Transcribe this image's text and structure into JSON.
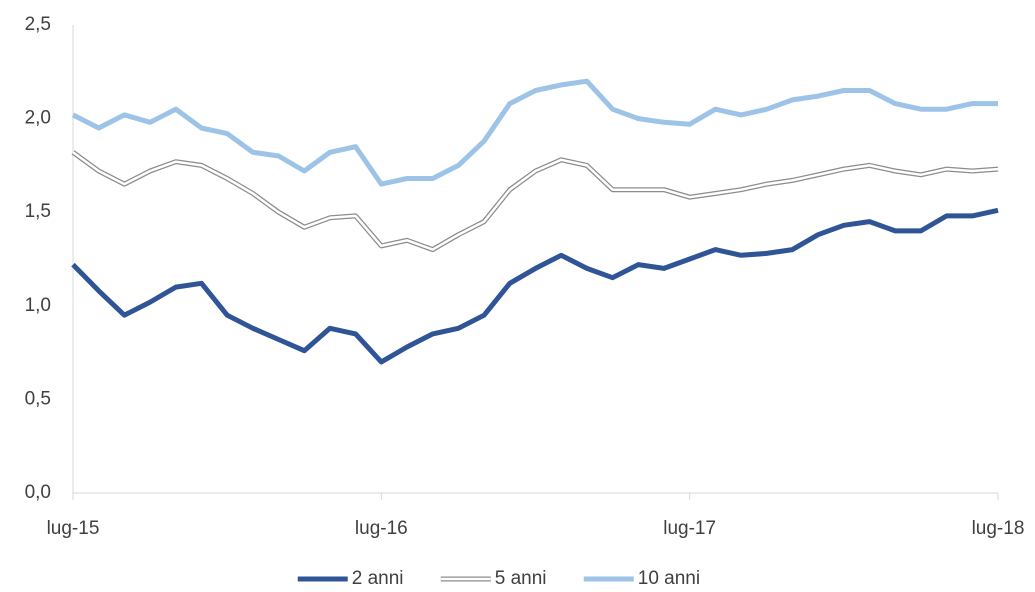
{
  "chart_data": {
    "type": "line",
    "x": [
      "2015-07",
      "2015-08",
      "2015-09",
      "2015-10",
      "2015-11",
      "2015-12",
      "2016-01",
      "2016-02",
      "2016-03",
      "2016-04",
      "2016-05",
      "2016-06",
      "2016-07",
      "2016-08",
      "2016-09",
      "2016-10",
      "2016-11",
      "2016-12",
      "2017-01",
      "2017-02",
      "2017-03",
      "2017-04",
      "2017-05",
      "2017-06",
      "2017-07",
      "2017-08",
      "2017-09",
      "2017-10",
      "2017-11",
      "2017-12",
      "2018-01",
      "2018-02",
      "2018-03",
      "2018-04",
      "2018-05",
      "2018-06",
      "2018-07"
    ],
    "series": [
      {
        "name": "2 anni",
        "color": "#2f5597",
        "style": "solid",
        "values": [
          1.22,
          1.08,
          0.95,
          1.02,
          1.1,
          1.12,
          0.95,
          0.88,
          0.82,
          0.76,
          0.88,
          0.85,
          0.7,
          0.78,
          0.85,
          0.88,
          0.95,
          1.12,
          1.2,
          1.27,
          1.2,
          1.15,
          1.22,
          1.2,
          1.25,
          1.3,
          1.27,
          1.28,
          1.3,
          1.38,
          1.43,
          1.45,
          1.4,
          1.4,
          1.48,
          1.48,
          1.51
        ]
      },
      {
        "name": "5 anni",
        "color": "#8c8c8c",
        "style": "double",
        "values": [
          1.82,
          1.72,
          1.65,
          1.72,
          1.77,
          1.75,
          1.68,
          1.6,
          1.5,
          1.42,
          1.47,
          1.48,
          1.32,
          1.35,
          1.3,
          1.38,
          1.45,
          1.62,
          1.72,
          1.78,
          1.75,
          1.62,
          1.62,
          1.62,
          1.58,
          1.6,
          1.62,
          1.65,
          1.67,
          1.7,
          1.73,
          1.75,
          1.72,
          1.7,
          1.73,
          1.72,
          1.73
        ]
      },
      {
        "name": "10 anni",
        "color": "#9dc3e6",
        "style": "solid",
        "values": [
          2.02,
          1.95,
          2.02,
          1.98,
          2.05,
          1.95,
          1.92,
          1.82,
          1.8,
          1.72,
          1.82,
          1.85,
          1.65,
          1.68,
          1.68,
          1.75,
          1.88,
          2.08,
          2.15,
          2.18,
          2.2,
          2.05,
          2.0,
          1.98,
          1.97,
          2.05,
          2.02,
          2.05,
          2.1,
          2.12,
          2.15,
          2.15,
          2.08,
          2.05,
          2.05,
          2.08,
          2.08
        ]
      }
    ],
    "xticks": [
      {
        "value": "2015-07",
        "label": "lug-15"
      },
      {
        "value": "2016-07",
        "label": "lug-16"
      },
      {
        "value": "2017-07",
        "label": "lug-17"
      },
      {
        "value": "2018-07",
        "label": "lug-18"
      }
    ],
    "ylim": [
      0,
      2.5
    ],
    "yticks": [
      {
        "value": 0,
        "label": "0,0"
      },
      {
        "value": 0.5,
        "label": "0,5"
      },
      {
        "value": 1,
        "label": "1,0"
      },
      {
        "value": 1.5,
        "label": "1,5"
      },
      {
        "value": 2,
        "label": "2,0"
      },
      {
        "value": 2.5,
        "label": "2,5"
      }
    ],
    "grid": false,
    "legend": "bottom"
  }
}
